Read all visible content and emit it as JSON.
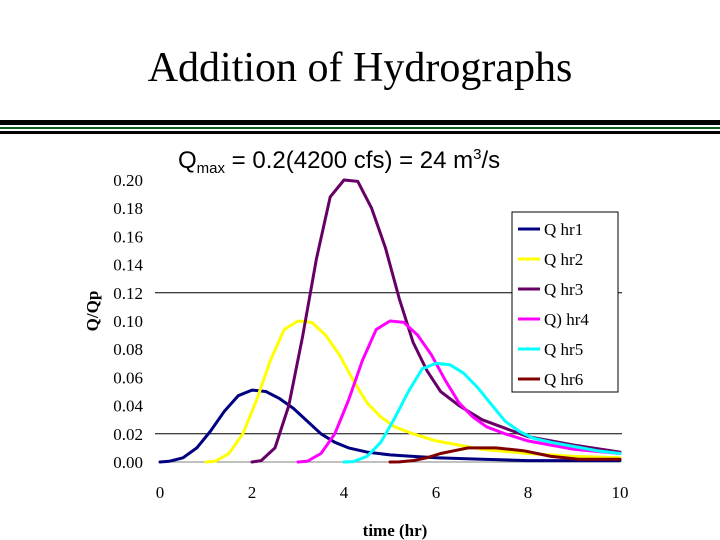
{
  "slide": {
    "title": "Addition of Hydrographs",
    "formula": {
      "q": "Q",
      "sub": "max",
      "mid": " = 0.2(4200 cfs) = 24 m",
      "sup": "3",
      "tail": "/s"
    }
  },
  "chart_data": {
    "type": "line",
    "title": "",
    "xlabel": "time (hr)",
    "ylabel": "Q/Qp",
    "xlim": [
      0,
      10
    ],
    "ylim": [
      0,
      0.2
    ],
    "xticks": [
      "0",
      "2",
      "4",
      "6",
      "8",
      "10"
    ],
    "yticks": [
      "0.00",
      "0.02",
      "0.04",
      "0.06",
      "0.08",
      "0.10",
      "0.12",
      "0.14",
      "0.16",
      "0.18",
      "0.20"
    ],
    "grid": "horizontal at 0.02 and 0.12",
    "legend_position": "right",
    "series": [
      {
        "name": "Q hr1",
        "color": "#000080",
        "x": [
          0,
          0.2,
          0.5,
          0.8,
          1.1,
          1.4,
          1.7,
          2.0,
          2.3,
          2.6,
          2.9,
          3.2,
          3.5,
          3.8,
          4.1,
          4.5,
          5.0,
          5.5,
          6.0,
          7.0,
          8.0,
          10.0
        ],
        "y": [
          0,
          0.0005,
          0.003,
          0.01,
          0.022,
          0.036,
          0.047,
          0.051,
          0.05,
          0.045,
          0.038,
          0.029,
          0.02,
          0.014,
          0.01,
          0.007,
          0.005,
          0.004,
          0.003,
          0.002,
          0.001,
          0.001
        ]
      },
      {
        "name": "Q hr2",
        "color": "#ffff00",
        "x": [
          1.0,
          1.2,
          1.5,
          1.8,
          2.1,
          2.4,
          2.7,
          3.0,
          3.3,
          3.6,
          3.9,
          4.2,
          4.5,
          4.8,
          5.1,
          5.5,
          6.0,
          6.5,
          7.0,
          8.0,
          9.0,
          10.0
        ],
        "y": [
          0,
          0.0005,
          0.006,
          0.02,
          0.044,
          0.072,
          0.094,
          0.1,
          0.099,
          0.09,
          0.076,
          0.058,
          0.042,
          0.032,
          0.025,
          0.02,
          0.015,
          0.012,
          0.009,
          0.006,
          0.004,
          0.003
        ]
      },
      {
        "name": "Q hr3",
        "color": "#660066",
        "x": [
          2.0,
          2.2,
          2.5,
          2.8,
          3.1,
          3.4,
          3.7,
          4.0,
          4.3,
          4.6,
          4.9,
          5.2,
          5.5,
          5.8,
          6.1,
          6.5,
          7.0,
          7.5,
          8.0,
          9.0,
          10.0
        ],
        "y": [
          0,
          0.001,
          0.01,
          0.04,
          0.089,
          0.144,
          0.188,
          0.2,
          0.199,
          0.18,
          0.152,
          0.116,
          0.085,
          0.065,
          0.05,
          0.04,
          0.03,
          0.024,
          0.018,
          0.012,
          0.007
        ]
      },
      {
        "name": "Q) hr4",
        "color": "#ff00ff",
        "x": [
          3.0,
          3.2,
          3.5,
          3.8,
          4.1,
          4.4,
          4.7,
          5.0,
          5.3,
          5.6,
          5.9,
          6.2,
          6.5,
          6.8,
          7.1,
          7.5,
          8.0,
          8.5,
          9.0,
          10.0
        ],
        "y": [
          0,
          0.0005,
          0.006,
          0.02,
          0.044,
          0.072,
          0.094,
          0.1,
          0.099,
          0.09,
          0.076,
          0.058,
          0.042,
          0.032,
          0.025,
          0.02,
          0.015,
          0.012,
          0.009,
          0.006
        ]
      },
      {
        "name": "Q hr5",
        "color": "#00ffff",
        "x": [
          4.0,
          4.2,
          4.5,
          4.8,
          5.1,
          5.4,
          5.7,
          6.0,
          6.3,
          6.6,
          6.9,
          7.2,
          7.5,
          7.8,
          8.1,
          8.5,
          9.0,
          9.5,
          10.0
        ],
        "y": [
          0,
          0.0003,
          0.004,
          0.014,
          0.031,
          0.05,
          0.066,
          0.07,
          0.069,
          0.063,
          0.053,
          0.041,
          0.029,
          0.022,
          0.017,
          0.014,
          0.011,
          0.008,
          0.006
        ]
      },
      {
        "name": "Q hr6",
        "color": "#800000",
        "x": [
          5.0,
          5.2,
          5.5,
          5.8,
          6.1,
          6.4,
          6.7,
          7.0,
          7.3,
          7.6,
          7.9,
          8.2,
          8.5,
          8.8,
          9.1,
          9.5,
          10.0
        ],
        "y": [
          0,
          0.0001,
          0.001,
          0.003,
          0.006,
          0.008,
          0.01,
          0.01,
          0.01,
          0.009,
          0.008,
          0.006,
          0.004,
          0.003,
          0.002,
          0.002,
          0.002
        ]
      }
    ]
  }
}
